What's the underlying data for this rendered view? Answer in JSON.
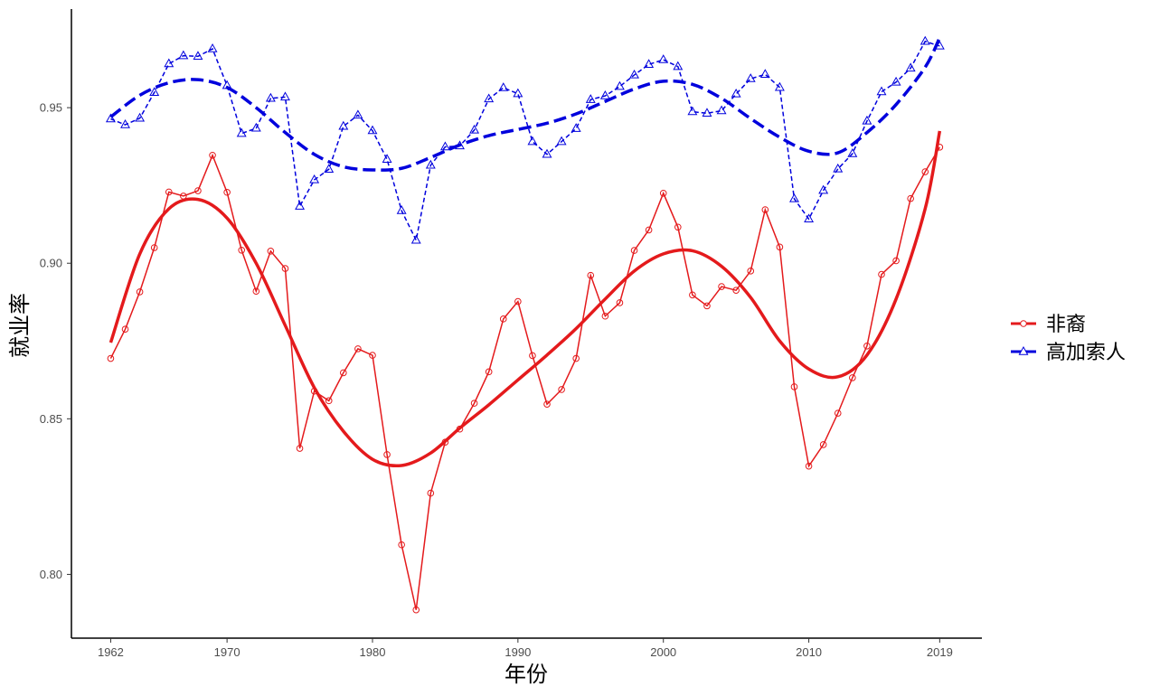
{
  "chart_data": {
    "type": "line",
    "title": "",
    "xlabel": "年份",
    "ylabel": "就业率",
    "xlim": [
      1959.3,
      2021.9
    ],
    "ylim": [
      0.7795,
      0.9817
    ],
    "x_ticks": [
      1962,
      1970,
      1980,
      1990,
      2000,
      2010,
      2019
    ],
    "x_tick_labels": [
      "1962",
      "1970",
      "1980",
      "1990",
      "2000",
      "2010",
      "2019"
    ],
    "y_ticks": [
      0.8,
      0.85,
      0.9,
      0.95
    ],
    "y_tick_labels": [
      "0.80",
      "0.85",
      "0.90",
      "0.95"
    ],
    "grid": false,
    "legend_position": "right",
    "x": [
      1962,
      1963,
      1964,
      1965,
      1966,
      1967,
      1968,
      1969,
      1970,
      1971,
      1972,
      1973,
      1974,
      1975,
      1976,
      1977,
      1978,
      1979,
      1980,
      1981,
      1982,
      1983,
      1984,
      1985,
      1986,
      1987,
      1988,
      1989,
      1990,
      1991,
      1992,
      1993,
      1994,
      1995,
      1996,
      1997,
      1998,
      1999,
      2000,
      2001,
      2002,
      2003,
      2004,
      2005,
      2006,
      2007,
      2008,
      2009,
      2010,
      2011,
      2012,
      2013,
      2014,
      2015,
      2016,
      2017,
      2018,
      2019
    ],
    "series": [
      {
        "name": "非裔",
        "color": "#e41a1c",
        "marker": "circle",
        "values": [
          0.8694,
          0.8788,
          0.8908,
          0.905,
          0.9229,
          0.9216,
          0.9233,
          0.9347,
          0.9228,
          0.9042,
          0.891,
          0.9039,
          0.8983,
          0.8405,
          0.8589,
          0.8558,
          0.8648,
          0.8725,
          0.8704,
          0.8385,
          0.8095,
          0.7886,
          0.8261,
          0.8425,
          0.8467,
          0.855,
          0.8651,
          0.8821,
          0.8877,
          0.8703,
          0.8547,
          0.8594,
          0.8694,
          0.8961,
          0.883,
          0.8873,
          0.9041,
          0.9107,
          0.9225,
          0.9116,
          0.8898,
          0.8863,
          0.8925,
          0.8913,
          0.8975,
          0.9172,
          0.9052,
          0.8603,
          0.8348,
          0.8417,
          0.8518,
          0.8632,
          0.8734,
          0.8964,
          0.9008,
          0.9208,
          0.9294,
          0.9373
        ],
        "smooth": {
          "x": [
            1962,
            1964,
            1966,
            1968,
            1970,
            1972,
            1974,
            1976,
            1978,
            1980,
            1982,
            1984,
            1986,
            1988,
            1990,
            1992,
            1994,
            1996,
            1998,
            2000,
            2002,
            2004,
            2006,
            2008,
            2010,
            2012,
            2014,
            2016,
            2018,
            2019
          ],
          "y": [
            0.8745,
            0.903,
            0.9175,
            0.9205,
            0.9145,
            0.9,
            0.88,
            0.86,
            0.846,
            0.837,
            0.835,
            0.839,
            0.847,
            0.8545,
            0.8625,
            0.8705,
            0.879,
            0.8885,
            0.8975,
            0.903,
            0.904,
            0.899,
            0.889,
            0.875,
            0.866,
            0.8635,
            0.8705,
            0.8885,
            0.9175,
            0.9425
          ]
        }
      },
      {
        "name": "高加索人",
        "color": "#0000dd",
        "marker": "triangle",
        "values": [
          0.9464,
          0.9445,
          0.9466,
          0.9549,
          0.9641,
          0.9667,
          0.9665,
          0.9689,
          0.9571,
          0.9417,
          0.9434,
          0.953,
          0.9534,
          0.9183,
          0.9268,
          0.9302,
          0.944,
          0.9476,
          0.9426,
          0.9334,
          0.9169,
          0.9074,
          0.9315,
          0.9374,
          0.9377,
          0.9428,
          0.9528,
          0.9564,
          0.9545,
          0.9391,
          0.935,
          0.9391,
          0.9433,
          0.9526,
          0.9538,
          0.9568,
          0.9605,
          0.9639,
          0.9654,
          0.9632,
          0.9487,
          0.9482,
          0.949,
          0.9544,
          0.9593,
          0.9607,
          0.9565,
          0.9207,
          0.9142,
          0.9234,
          0.9303,
          0.9352,
          0.9457,
          0.9551,
          0.9582,
          0.9627,
          0.9713,
          0.9698
        ],
        "smooth": {
          "x": [
            1962,
            1964,
            1966,
            1968,
            1970,
            1972,
            1974,
            1976,
            1978,
            1980,
            1982,
            1984,
            1986,
            1988,
            1990,
            1992,
            1994,
            1996,
            1998,
            2000,
            2002,
            2004,
            2006,
            2008,
            2010,
            2012,
            2014,
            2016,
            2018,
            2019
          ],
          "y": [
            0.947,
            0.954,
            0.958,
            0.959,
            0.9565,
            0.95,
            0.942,
            0.935,
            0.931,
            0.93,
            0.9305,
            0.934,
            0.938,
            0.941,
            0.943,
            0.945,
            0.948,
            0.952,
            0.956,
            0.9585,
            0.9575,
            0.953,
            0.9465,
            0.9405,
            0.936,
            0.9355,
            0.942,
            0.951,
            0.963,
            0.9725
          ]
        }
      }
    ]
  }
}
